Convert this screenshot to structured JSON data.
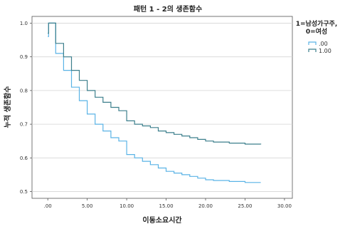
{
  "chart_data": {
    "type": "line",
    "step": true,
    "title": "패턴 1 - 2의 생존함수",
    "xlabel": "이동소요시간",
    "ylabel": "누적 생존함수",
    "xlim": [
      -2,
      31
    ],
    "ylim": [
      0.48,
      1.02
    ],
    "x_ticks": [
      0,
      5,
      10,
      15,
      20,
      25,
      30
    ],
    "x_tick_labels": [
      ".00",
      "5.00",
      "10.00",
      "15.00",
      "20.00",
      "25.00",
      "30.00"
    ],
    "y_ticks": [
      0.5,
      0.6,
      0.7,
      0.8,
      0.9,
      1.0
    ],
    "y_tick_labels": [
      "0.5",
      "0.6",
      "0.7",
      "0.8",
      "0.9",
      "1.0"
    ],
    "grid": "horizontal",
    "legend": {
      "title_lines": [
        "1=남성가구주,",
        "0=여성"
      ],
      "position": "right"
    },
    "series": [
      {
        "name": ".00",
        "color": "#5ab3e6",
        "x": [
          0,
          0.1,
          1,
          2,
          3,
          4,
          5,
          6,
          7,
          8,
          9,
          10,
          11,
          12,
          13,
          14,
          15,
          16,
          17,
          18,
          19,
          20,
          21,
          23,
          25,
          27
        ],
        "y": [
          0.96,
          1.0,
          0.91,
          0.86,
          0.81,
          0.77,
          0.73,
          0.7,
          0.68,
          0.66,
          0.65,
          0.61,
          0.6,
          0.59,
          0.58,
          0.57,
          0.56,
          0.555,
          0.55,
          0.545,
          0.54,
          0.535,
          0.533,
          0.53,
          0.527,
          0.527
        ]
      },
      {
        "name": "1.00",
        "color": "#3c7f8c",
        "x": [
          0,
          0.1,
          1,
          2,
          3,
          4,
          5,
          6,
          7,
          8,
          9,
          10,
          11,
          12,
          13,
          14,
          15,
          16,
          17,
          18,
          19,
          20,
          21,
          23,
          25,
          27
        ],
        "y": [
          0.97,
          1.0,
          0.94,
          0.9,
          0.86,
          0.83,
          0.8,
          0.78,
          0.765,
          0.75,
          0.74,
          0.71,
          0.7,
          0.695,
          0.69,
          0.68,
          0.675,
          0.67,
          0.665,
          0.66,
          0.655,
          0.65,
          0.647,
          0.644,
          0.641,
          0.64
        ]
      }
    ]
  }
}
